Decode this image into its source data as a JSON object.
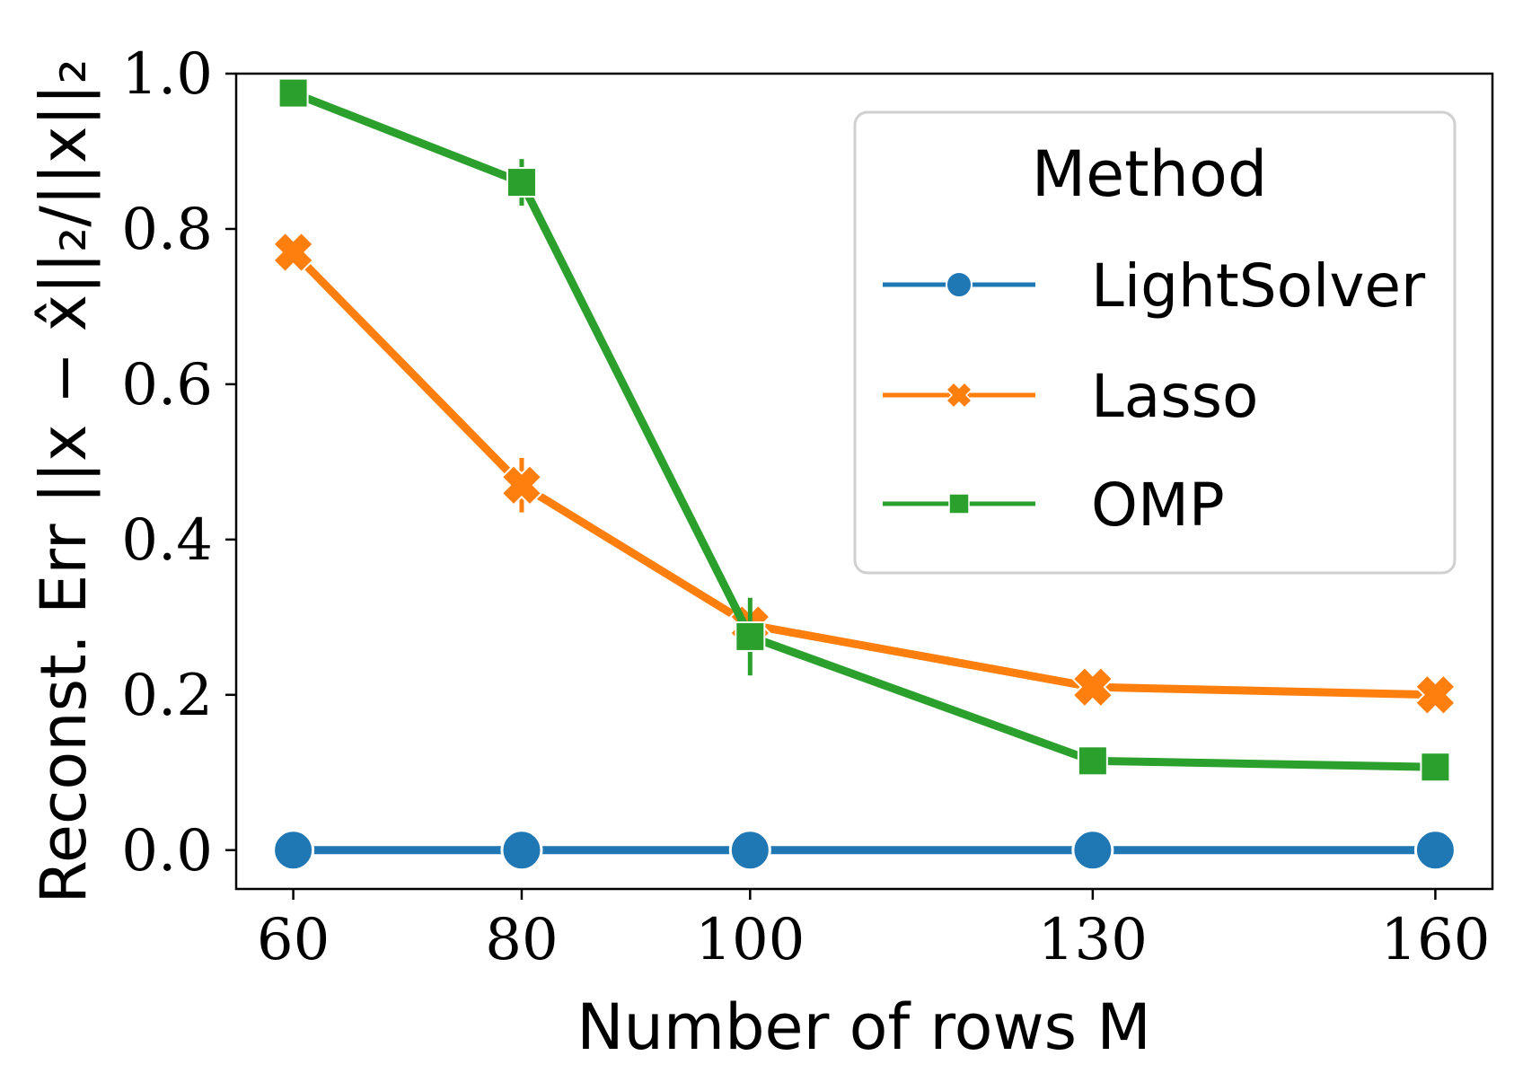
{
  "chart_data": {
    "type": "line",
    "title": "",
    "xlabel": "Number of rows M",
    "ylabel": "Reconst. Err ||x − x̂||₂/||x||₂",
    "x": [
      60,
      80,
      100,
      130,
      160
    ],
    "x_tick_labels": [
      "60",
      "80",
      "100",
      "130",
      "160"
    ],
    "xlim": [
      55,
      165
    ],
    "ylim": [
      -0.05,
      1.0
    ],
    "y_ticks": [
      0.0,
      0.2,
      0.4,
      0.6,
      0.8,
      1.0
    ],
    "y_tick_labels": [
      "0.0",
      "0.2",
      "0.4",
      "0.6",
      "0.8",
      "1.0"
    ],
    "grid": false,
    "legend": {
      "title": "Method",
      "placement": "top-right"
    },
    "series": [
      {
        "name": "LightSolver",
        "color": "#1f77b4",
        "marker": "circle",
        "values": [
          0.0,
          0.0,
          0.0,
          0.0,
          0.0
        ],
        "error": [
          0,
          0,
          0,
          0,
          0
        ]
      },
      {
        "name": "Lasso",
        "color": "#ff7f0e",
        "marker": "x",
        "values": [
          0.77,
          0.47,
          0.29,
          0.21,
          0.2
        ],
        "error": [
          0.0,
          0.035,
          0.0,
          0.0,
          0.0
        ]
      },
      {
        "name": "OMP",
        "color": "#2ca02c",
        "marker": "square",
        "values": [
          0.975,
          0.86,
          0.275,
          0.115,
          0.107
        ],
        "error": [
          0.0,
          0.03,
          0.05,
          0.0,
          0.0
        ]
      }
    ]
  }
}
